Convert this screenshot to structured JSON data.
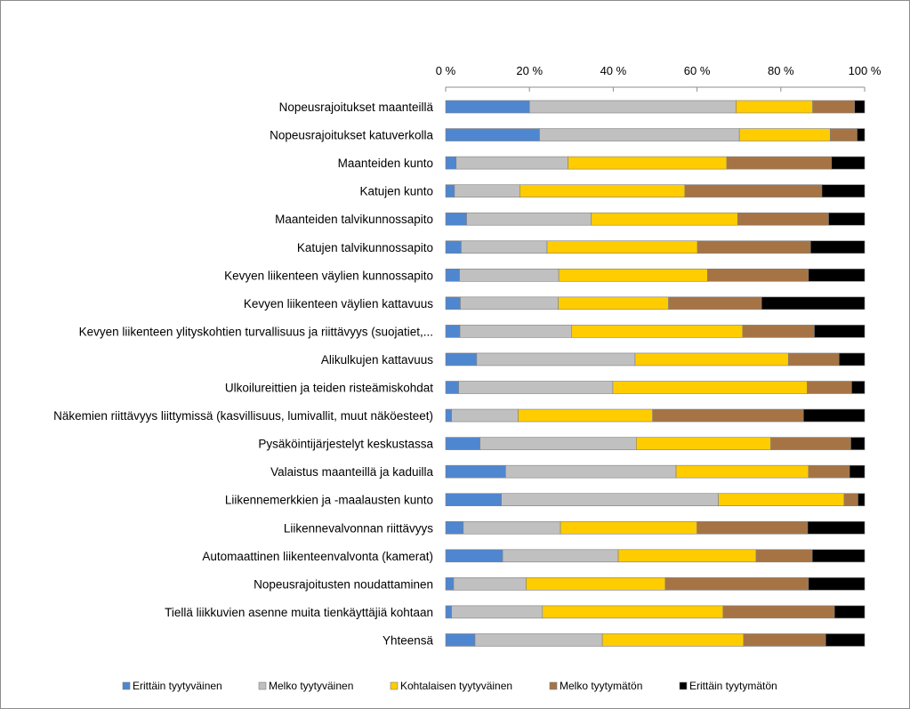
{
  "chart_data": {
    "type": "bar",
    "orientation": "horizontal",
    "stacked": "percent",
    "title": "",
    "xlabel": "",
    "ylabel": "",
    "xlim": [
      0,
      100
    ],
    "x_axis_position": "top",
    "grid": false,
    "legend_position": "bottom",
    "ticks": [
      "0 %",
      "20 %",
      "40 %",
      "60 %",
      "80 %",
      "100 %"
    ],
    "categories": [
      "Nopeusrajoitukset maanteillä",
      "Nopeusrajoitukset katuverkolla",
      "Maanteiden kunto",
      "Katujen kunto",
      "Maanteiden talvikunnossapito",
      "Katujen talvikunnossapito",
      "Kevyen liikenteen väylien kunnossapito",
      "Kevyen liikenteen väylien kattavuus",
      "Kevyen liikenteen ylityskohtien turvallisuus ja riittävyys (suojatiet,...",
      "Alikulkujen kattavuus",
      "Ulkoilureittien ja teiden risteämiskohdat",
      "Näkemien riittävyys liittymissä (kasvillisuus, lumivallit, muut näköesteet)",
      "Pysäköintijärjestelyt keskustassa",
      "Valaistus maanteillä ja kaduilla",
      "Liikennemerkkien ja -maalausten kunto",
      "Liikennevalvonnan riittävyys",
      "Automaattinen liikenteenvalvonta (kamerat)",
      "Nopeusrajoitusten noudattaminen",
      "Tiellä liikkuvien asenne muita tienkäyttäjiä kohtaan",
      "Yhteensä"
    ],
    "series": [
      {
        "name": "Erittäin tyytyväinen",
        "color": "#4f86d0",
        "values": [
          20,
          22.4,
          2.5,
          2.1,
          5,
          3.7,
          3.3,
          3.5,
          3.4,
          7.4,
          3.1,
          1.4,
          8.2,
          14.3,
          13.3,
          4.2,
          13.6,
          1.9,
          1.4,
          7
        ]
      },
      {
        "name": "Melko tyytyväinen",
        "color": "#c0c0c0",
        "values": [
          49.3,
          47.7,
          26.7,
          15.6,
          29.7,
          20.5,
          23.7,
          23.4,
          26.6,
          37.8,
          36.8,
          15.9,
          37.3,
          40.7,
          51.8,
          23.2,
          27.6,
          17.3,
          21.7,
          30.4
        ]
      },
      {
        "name": "Kohtalaisen tyytyväinen",
        "color": "#ffcc00",
        "values": [
          18.3,
          21.7,
          37.9,
          39.4,
          35,
          35.9,
          35.5,
          26.3,
          40.9,
          36.6,
          46.4,
          32.1,
          32.1,
          31.6,
          30,
          32.6,
          32.9,
          33.2,
          43.1,
          33.7
        ]
      },
      {
        "name": "Melko tyytymätön",
        "color": "#a67444",
        "values": [
          10,
          6.4,
          25,
          32.7,
          21.7,
          27,
          24.1,
          22.2,
          17.1,
          12.1,
          10.6,
          36,
          19.1,
          9.8,
          3.3,
          26.4,
          13.4,
          34.2,
          26.6,
          19.6
        ]
      },
      {
        "name": "Erittäin tyytymätön",
        "color": "#000000",
        "values": [
          2.4,
          1.8,
          7.9,
          10.2,
          8.6,
          12.9,
          13.4,
          24.6,
          12,
          6.1,
          3.1,
          14.6,
          3.3,
          3.6,
          1.6,
          13.6,
          12.5,
          13.4,
          7.2,
          9.3
        ]
      }
    ]
  }
}
